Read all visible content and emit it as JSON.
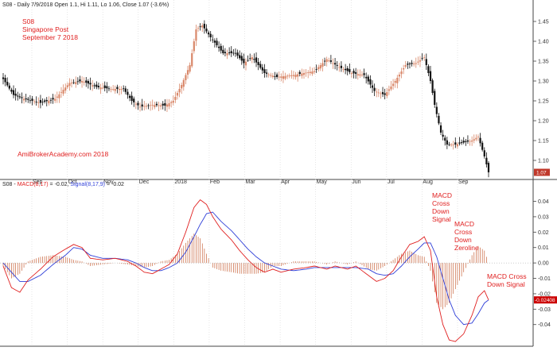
{
  "header": {
    "price_title": "S08 - Daily 7/9/2018 Open 1.1, Hi 1.11, Lo 1.06, Close 1.07 (-3.6%)",
    "macd_prefix": "S08 - ",
    "macd_name": "MACD(8,17)",
    "macd_value": " = -0.02, ",
    "signal_name": "Signal(8,17,9)",
    "signal_value": " = -0.02"
  },
  "annotations": {
    "ticker": "S08",
    "company": "Singapore Post",
    "date": "September 7 2018",
    "watermark": "AmiBrokerAcademy.com  2018",
    "macd_cross_down_signal": [
      "MACD",
      "Cross",
      "Down",
      "Signal"
    ],
    "macd_cross_down_zeroline": [
      "MACD",
      "Cross",
      "Down",
      "Zeroline"
    ],
    "macd_cross_down_signal_2": [
      "MACD Cross",
      "Down Signal"
    ]
  },
  "colors": {
    "up_candle": "#d9886a",
    "down_candle": "#111111",
    "macd_line": "#e02020",
    "signal_line": "#2f3fd8",
    "histogram": "#c8643c",
    "badge_price": "#c0392b",
    "badge_macd": "#cc0000",
    "annotation": "#e02020"
  },
  "chart_data": [
    {
      "type": "candlestick",
      "ylim": [
        1.06,
        1.48
      ],
      "y_ticks": [
        1.1,
        1.15,
        1.2,
        1.25,
        1.3,
        1.35,
        1.4,
        1.45
      ],
      "y_tick_labels": [
        "1.10",
        "1.15",
        "1.20",
        "1.25",
        "1.30",
        "1.35",
        "1.40",
        "1.45"
      ],
      "x_months": [
        "Sep",
        "Oct",
        "Nov",
        "Dec",
        "2018",
        "Feb",
        "Mar",
        "Apr",
        "May",
        "Jun",
        "Jul",
        "Aug",
        "Sep"
      ],
      "last_close": 1.07,
      "last_close_label": "1.07",
      "close_anchors": [
        [
          0,
          1.305
        ],
        [
          5,
          1.265
        ],
        [
          10,
          1.255
        ],
        [
          18,
          1.245
        ],
        [
          25,
          1.255
        ],
        [
          32,
          1.295
        ],
        [
          38,
          1.3
        ],
        [
          45,
          1.285
        ],
        [
          52,
          1.28
        ],
        [
          58,
          1.28
        ],
        [
          62,
          1.25
        ],
        [
          66,
          1.235
        ],
        [
          72,
          1.24
        ],
        [
          78,
          1.238
        ],
        [
          82,
          1.25
        ],
        [
          86,
          1.29
        ],
        [
          90,
          1.34
        ],
        [
          93,
          1.43
        ],
        [
          96,
          1.44
        ],
        [
          100,
          1.41
        ],
        [
          106,
          1.37
        ],
        [
          112,
          1.37
        ],
        [
          116,
          1.345
        ],
        [
          120,
          1.36
        ],
        [
          126,
          1.32
        ],
        [
          132,
          1.31
        ],
        [
          140,
          1.315
        ],
        [
          150,
          1.325
        ],
        [
          156,
          1.355
        ],
        [
          162,
          1.335
        ],
        [
          168,
          1.32
        ],
        [
          174,
          1.315
        ],
        [
          179,
          1.275
        ],
        [
          184,
          1.265
        ],
        [
          189,
          1.3
        ],
        [
          194,
          1.34
        ],
        [
          199,
          1.345
        ],
        [
          203,
          1.36
        ],
        [
          206,
          1.3
        ],
        [
          208,
          1.24
        ],
        [
          211,
          1.17
        ],
        [
          214,
          1.14
        ],
        [
          218,
          1.14
        ],
        [
          222,
          1.145
        ],
        [
          226,
          1.15
        ],
        [
          229,
          1.16
        ],
        [
          232,
          1.11
        ],
        [
          234,
          1.07
        ]
      ]
    },
    {
      "type": "line",
      "ylim": [
        -0.052,
        0.048
      ],
      "y_ticks": [
        0.04,
        0.03,
        0.02,
        0.01,
        0.0,
        -0.01,
        -0.02,
        -0.03,
        -0.04
      ],
      "y_tick_labels": [
        "0.04",
        "0.03",
        "0.02",
        "0.01",
        "0.00",
        "-0.01",
        "-0.02",
        "-0.03",
        "-0.04"
      ],
      "last_value_label": "-0.02408",
      "series": [
        {
          "name": "MACD(8,17)",
          "anchors": [
            [
              0,
              -0.002
            ],
            [
              4,
              -0.016
            ],
            [
              8,
              -0.019
            ],
            [
              12,
              -0.011
            ],
            [
              18,
              -0.004
            ],
            [
              24,
              0.004
            ],
            [
              30,
              0.009
            ],
            [
              34,
              0.012
            ],
            [
              38,
              0.01
            ],
            [
              42,
              0.003
            ],
            [
              48,
              0.002
            ],
            [
              54,
              0.003
            ],
            [
              60,
              0.001
            ],
            [
              64,
              -0.002
            ],
            [
              68,
              -0.006
            ],
            [
              72,
              -0.007
            ],
            [
              76,
              -0.004
            ],
            [
              80,
              -0.001
            ],
            [
              84,
              0.006
            ],
            [
              88,
              0.02
            ],
            [
              92,
              0.036
            ],
            [
              95,
              0.041
            ],
            [
              98,
              0.038
            ],
            [
              101,
              0.03
            ],
            [
              105,
              0.022
            ],
            [
              110,
              0.015
            ],
            [
              114,
              0.008
            ],
            [
              118,
              0.002
            ],
            [
              122,
              -0.003
            ],
            [
              126,
              -0.006
            ],
            [
              130,
              -0.004
            ],
            [
              134,
              -0.006
            ],
            [
              140,
              -0.004
            ],
            [
              146,
              -0.003
            ],
            [
              150,
              -0.002
            ],
            [
              156,
              -0.004
            ],
            [
              160,
              -0.002
            ],
            [
              166,
              -0.004
            ],
            [
              170,
              -0.002
            ],
            [
              176,
              -0.008
            ],
            [
              180,
              -0.012
            ],
            [
              184,
              -0.01
            ],
            [
              188,
              -0.005
            ],
            [
              192,
              0.004
            ],
            [
              196,
              0.012
            ],
            [
              200,
              0.014
            ],
            [
              203,
              0.017
            ],
            [
              206,
              0.008
            ],
            [
              209,
              -0.022
            ],
            [
              212,
              -0.04
            ],
            [
              215,
              -0.05
            ],
            [
              218,
              -0.051
            ],
            [
              222,
              -0.046
            ],
            [
              226,
              -0.034
            ],
            [
              229,
              -0.022
            ],
            [
              232,
              -0.018
            ],
            [
              234,
              -0.024
            ]
          ]
        },
        {
          "name": "Signal(8,17,9)",
          "anchors": [
            [
              0,
              0.0
            ],
            [
              4,
              -0.006
            ],
            [
              8,
              -0.012
            ],
            [
              12,
              -0.012
            ],
            [
              18,
              -0.008
            ],
            [
              24,
              -0.001
            ],
            [
              30,
              0.005
            ],
            [
              34,
              0.01
            ],
            [
              38,
              0.009
            ],
            [
              42,
              0.005
            ],
            [
              48,
              0.003
            ],
            [
              54,
              0.003
            ],
            [
              60,
              0.002
            ],
            [
              64,
              0.0
            ],
            [
              68,
              -0.003
            ],
            [
              72,
              -0.005
            ],
            [
              76,
              -0.005
            ],
            [
              80,
              -0.003
            ],
            [
              84,
              0.0
            ],
            [
              88,
              0.007
            ],
            [
              92,
              0.017
            ],
            [
              95,
              0.025
            ],
            [
              98,
              0.032
            ],
            [
              101,
              0.033
            ],
            [
              105,
              0.027
            ],
            [
              110,
              0.021
            ],
            [
              114,
              0.015
            ],
            [
              118,
              0.009
            ],
            [
              122,
              0.004
            ],
            [
              126,
              0.0
            ],
            [
              130,
              -0.002
            ],
            [
              134,
              -0.004
            ],
            [
              140,
              -0.005
            ],
            [
              146,
              -0.004
            ],
            [
              150,
              -0.003
            ],
            [
              156,
              -0.003
            ],
            [
              160,
              -0.003
            ],
            [
              166,
              -0.003
            ],
            [
              170,
              -0.003
            ],
            [
              176,
              -0.004
            ],
            [
              180,
              -0.007
            ],
            [
              184,
              -0.008
            ],
            [
              188,
              -0.007
            ],
            [
              192,
              -0.002
            ],
            [
              196,
              0.004
            ],
            [
              200,
              0.009
            ],
            [
              203,
              0.013
            ],
            [
              206,
              0.013
            ],
            [
              209,
              0.004
            ],
            [
              212,
              -0.01
            ],
            [
              215,
              -0.024
            ],
            [
              218,
              -0.034
            ],
            [
              222,
              -0.04
            ],
            [
              226,
              -0.039
            ],
            [
              229,
              -0.033
            ],
            [
              232,
              -0.026
            ],
            [
              234,
              -0.024
            ]
          ]
        }
      ]
    }
  ]
}
